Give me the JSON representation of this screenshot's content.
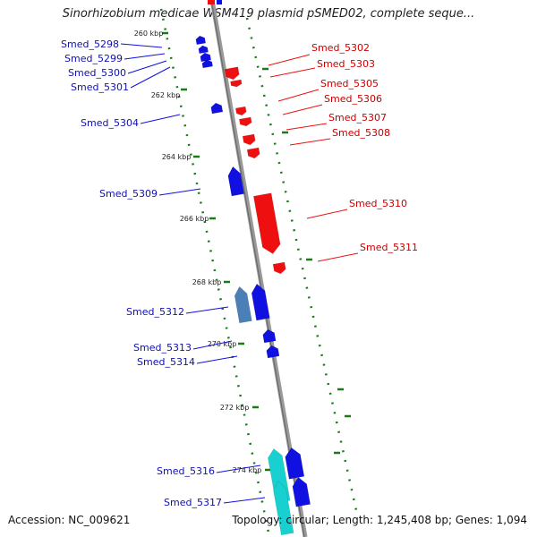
{
  "title": "Sinorhizobium medicae WSM419 plasmid pSMED02, complete seque...",
  "footer": {
    "accession": "Accession: NC_009621",
    "summary": "Topology: circular; Length: 1,245,408 bp; Genes: 1,094"
  },
  "colors": {
    "forward_strand": "#1010e0",
    "reverse_strand": "#ee1010",
    "highlight_blue": "#4a7fb8",
    "highlight_cyan": "#18d0d0",
    "backbone": "#888888",
    "tick_green": "#1a7a1a"
  },
  "ticks": [
    {
      "kbp": 260,
      "label": "260 kbp"
    },
    {
      "kbp": 262,
      "label": "262 kbp"
    },
    {
      "kbp": 264,
      "label": "264 kbp"
    },
    {
      "kbp": 266,
      "label": "266 kbp"
    },
    {
      "kbp": 268,
      "label": "268 kbp"
    },
    {
      "kbp": 270,
      "label": "270 kbp"
    },
    {
      "kbp": 272,
      "label": "272 kbp"
    },
    {
      "kbp": 274,
      "label": "274 kbp"
    }
  ],
  "genes": [
    {
      "id": "Smed_5298",
      "strand": "forward"
    },
    {
      "id": "Smed_5299",
      "strand": "forward"
    },
    {
      "id": "Smed_5300",
      "strand": "forward"
    },
    {
      "id": "Smed_5301",
      "strand": "forward"
    },
    {
      "id": "Smed_5302",
      "strand": "reverse"
    },
    {
      "id": "Smed_5303",
      "strand": "reverse"
    },
    {
      "id": "Smed_5304",
      "strand": "forward"
    },
    {
      "id": "Smed_5305",
      "strand": "reverse"
    },
    {
      "id": "Smed_5306",
      "strand": "reverse"
    },
    {
      "id": "Smed_5307",
      "strand": "reverse"
    },
    {
      "id": "Smed_5308",
      "strand": "reverse"
    },
    {
      "id": "Smed_5309",
      "strand": "forward"
    },
    {
      "id": "Smed_5310",
      "strand": "reverse"
    },
    {
      "id": "Smed_5311",
      "strand": "reverse"
    },
    {
      "id": "Smed_5312",
      "strand": "forward"
    },
    {
      "id": "Smed_5313",
      "strand": "forward"
    },
    {
      "id": "Smed_5314",
      "strand": "forward"
    },
    {
      "id": "Smed_5316",
      "strand": "forward"
    },
    {
      "id": "Smed_5317",
      "strand": "forward"
    }
  ]
}
